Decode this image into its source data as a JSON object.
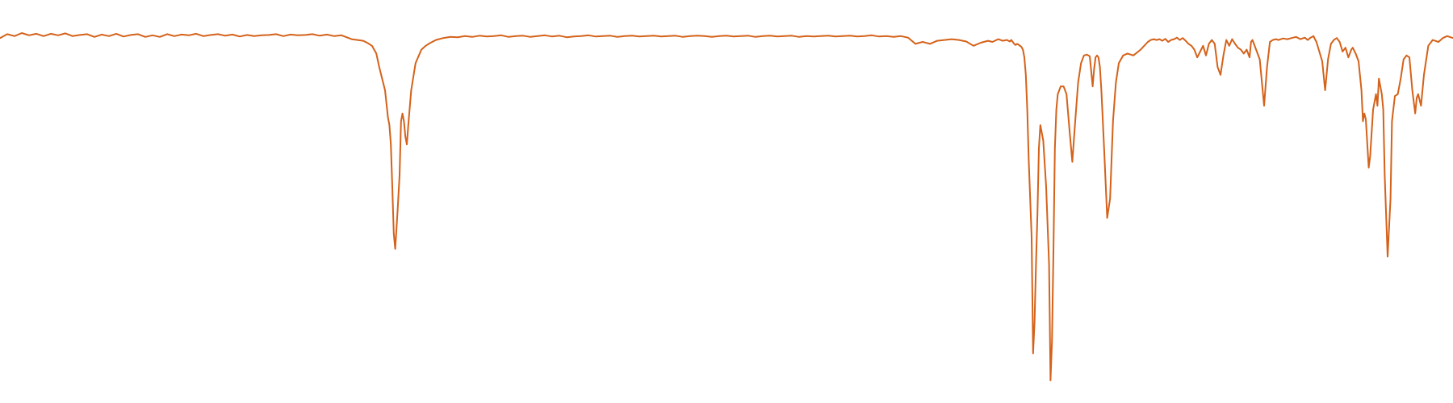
{
  "colors": {
    "background": "#ffffff",
    "line": "#d4621a"
  },
  "chart_data": {
    "type": "line",
    "title": "",
    "xlabel": "",
    "ylabel": "",
    "grid": false,
    "legend": "none",
    "xlim": [
      0,
      100
    ],
    "ylim": [
      0,
      100
    ],
    "series": [
      {
        "x": [
          0,
          0.5,
          1,
          1.5,
          2,
          2.5,
          3,
          3.5,
          4,
          4.5,
          5,
          5.5,
          6,
          6.5,
          7,
          7.5,
          8,
          8.5,
          9,
          9.5,
          10,
          10.5,
          11,
          11.5,
          12,
          12.5,
          13,
          13.5,
          14,
          14.5,
          15,
          15.5,
          16,
          16.5,
          17,
          17.5,
          18,
          18.5,
          19,
          19.5,
          20,
          20.5,
          21,
          21.5,
          22,
          22.5,
          23,
          23.5,
          24,
          24.2,
          24.6,
          25,
          25.3,
          25.6,
          25.9,
          26.1,
          26.3,
          26.5,
          26.6,
          26.7,
          26.8,
          26.9,
          27,
          27.1,
          27.2,
          27.35,
          27.5,
          27.6,
          27.7,
          27.8,
          27.9,
          28,
          28.1,
          28.3,
          28.6,
          29,
          29.3,
          29.6,
          30,
          30.5,
          31,
          31.5,
          32,
          32.5,
          33,
          33.5,
          34,
          34.5,
          35,
          35.5,
          36,
          36.5,
          37,
          37.5,
          38,
          38.5,
          39,
          39.5,
          40,
          40.5,
          41,
          41.5,
          42,
          42.5,
          43,
          43.5,
          44,
          44.5,
          45,
          45.5,
          46,
          46.5,
          47,
          47.5,
          48,
          48.5,
          49,
          49.5,
          50,
          50.5,
          51,
          51.5,
          52,
          52.5,
          53,
          53.5,
          54,
          54.5,
          55,
          55.5,
          56,
          56.5,
          57,
          57.5,
          58,
          58.5,
          59,
          59.5,
          60,
          60.5,
          61,
          61.5,
          62,
          62.5,
          63,
          63.5,
          64,
          64.5,
          65,
          65.5,
          66,
          66.5,
          67,
          67.5,
          68,
          68.3,
          68.7,
          69,
          69.3,
          69.5,
          69.6,
          69.7,
          69.8,
          69.9,
          70,
          70.1,
          70.2,
          70.3,
          70.4,
          70.5,
          70.6,
          70.7,
          70.8,
          70.9,
          71,
          71.1,
          71.2,
          71.3,
          71.4,
          71.5,
          71.6,
          71.8,
          72,
          72.2,
          72.3,
          72.4,
          72.5,
          72.6,
          72.7,
          72.8,
          73,
          73.2,
          73.4,
          73.6,
          73.8,
          74,
          74.2,
          74.4,
          74.6,
          74.8,
          75,
          75.1,
          75.2,
          75.3,
          75.4,
          75.5,
          75.6,
          75.7,
          75.8,
          76,
          76.2,
          76.4,
          76.6,
          76.8,
          77,
          77.3,
          77.6,
          78,
          78.5,
          79,
          79.2,
          79.4,
          79.6,
          79.8,
          80,
          80.2,
          80.4,
          80.6,
          80.8,
          81,
          81.2,
          81.4,
          81.6,
          81.8,
          82,
          82.2,
          82.4,
          82.6,
          82.8,
          83,
          83.2,
          83.4,
          83.6,
          83.8,
          84,
          84.2,
          84.4,
          84.6,
          84.8,
          85,
          85.2,
          85.4,
          85.6,
          85.8,
          86,
          86.1,
          86.2,
          86.3,
          86.5,
          86.7,
          86.9,
          87,
          87.2,
          87.4,
          87.6,
          87.8,
          88,
          88.3,
          88.6,
          88.9,
          89.2,
          89.5,
          89.8,
          90,
          90.2,
          90.4,
          90.5,
          90.6,
          90.8,
          91,
          91.2,
          91.4,
          91.6,
          91.8,
          92,
          92.2,
          92.4,
          92.6,
          92.8,
          93,
          93.1,
          93.3,
          93.5,
          93.7,
          93.8,
          93.9,
          94,
          94.2,
          94.3,
          94.5,
          94.7,
          94.8,
          94.9,
          95,
          95.1,
          95.2,
          95.3,
          95.5,
          95.7,
          95.8,
          96,
          96.2,
          96.4,
          96.6,
          96.8,
          97,
          97.2,
          97.4,
          97.5,
          97.6,
          97.8,
          98,
          98.3,
          98.6,
          99,
          99.3,
          99.6,
          100
        ],
        "y": [
          93.5,
          94.5,
          94.0,
          94.8,
          94.2,
          94.6,
          94.0,
          94.6,
          94.2,
          94.7,
          94.0,
          94.3,
          94.5,
          93.8,
          94.4,
          94.0,
          94.6,
          93.9,
          94.3,
          94.5,
          93.8,
          94.2,
          93.8,
          94.5,
          94.0,
          94.4,
          94.2,
          94.6,
          94.0,
          94.3,
          94.5,
          94.1,
          94.4,
          93.9,
          94.3,
          94.0,
          94.2,
          94.3,
          94.5,
          94.0,
          94.4,
          94.2,
          94.3,
          94.5,
          94.1,
          94.4,
          94.0,
          94.2,
          93.5,
          93.2,
          93.0,
          92.8,
          92.2,
          91.5,
          89.5,
          86.0,
          83.0,
          80.0,
          76.5,
          73.0,
          71.0,
          66.0,
          55.0,
          43.0,
          39.0,
          48.0,
          58.0,
          72.0,
          74.0,
          72.0,
          68.0,
          66.0,
          71.0,
          80.0,
          87.0,
          90.5,
          91.5,
          92.2,
          93.0,
          93.5,
          93.8,
          93.7,
          94.0,
          93.8,
          94.1,
          93.9,
          94.0,
          94.2,
          93.8,
          94.0,
          94.1,
          93.8,
          94.0,
          94.2,
          93.9,
          94.1,
          93.7,
          93.9,
          94.0,
          94.2,
          93.9,
          94.0,
          94.1,
          93.8,
          94.0,
          94.1,
          93.9,
          94.0,
          94.1,
          93.9,
          94.0,
          94.1,
          93.8,
          94.0,
          94.1,
          94.0,
          93.8,
          94.0,
          94.1,
          93.9,
          94.0,
          94.1,
          93.8,
          94.0,
          94.1,
          93.9,
          94.0,
          94.1,
          93.8,
          94.0,
          93.9,
          94.0,
          94.1,
          93.9,
          94.0,
          94.1,
          93.9,
          94.0,
          94.2,
          93.9,
          94.0,
          93.8,
          94.0,
          93.6,
          92.0,
          92.5,
          92.0,
          92.8,
          93.0,
          93.2,
          93.0,
          92.6,
          91.5,
          92.3,
          92.8,
          92.5,
          93.2,
          92.8,
          93.0,
          92.6,
          93.0,
          92.5,
          92.0,
          91.7,
          92.0,
          91.8,
          91.5,
          91.2,
          90.5,
          88.5,
          84.0,
          75.0,
          62.0,
          52.0,
          42.0,
          12.0,
          20.0,
          35.0,
          48.0,
          65.0,
          71.0,
          67.0,
          55.0,
          35.0,
          5.0,
          15.0,
          38.0,
          65.0,
          75.0,
          79.0,
          81.0,
          81.0,
          79.0,
          70.0,
          61.5,
          72.0,
          82.0,
          87.0,
          89.0,
          89.2,
          88.8,
          85.0,
          81.0,
          85.5,
          88.5,
          89.0,
          88.5,
          86.0,
          80.0,
          64.0,
          47.0,
          52.0,
          72.0,
          82.0,
          87.0,
          89.0,
          89.5,
          89.0,
          90.5,
          92.5,
          93.0,
          93.2,
          93.0,
          93.2,
          92.8,
          93.3,
          92.5,
          93.0,
          93.2,
          93.6,
          93.0,
          93.5,
          92.8,
          92.0,
          91.5,
          90.5,
          88.5,
          90.0,
          91.5,
          89.0,
          92.0,
          93.0,
          92.0,
          86.0,
          84.0,
          89.0,
          93.0,
          91.5,
          93.2,
          92.0,
          91.0,
          90.5,
          89.5,
          90.5,
          88.5,
          92.5,
          93.0,
          92.0,
          90.0,
          88.0,
          80.0,
          76.0,
          86.0,
          92.5,
          93.0,
          93.2,
          93.0,
          93.4,
          93.2,
          93.5,
          93.8,
          93.2,
          93.6,
          93.0,
          93.6,
          94.0,
          93.2,
          92.5,
          90.0,
          87.5,
          80.0,
          88.0,
          92.0,
          93.0,
          93.5,
          92.5,
          90.0,
          91.0,
          88.5,
          90.5,
          91.0,
          89.5,
          87.5,
          80.0,
          72.0,
          74.0,
          72.5,
          60.0,
          63.0,
          75.0,
          79.0,
          76.0,
          83.0,
          81.0,
          79.0,
          75.0,
          58.0,
          37.0,
          52.0,
          72.0,
          78.5,
          79.0,
          83.0,
          88.0,
          89.0,
          88.5,
          80.0,
          74.0,
          78.0,
          79.0,
          76.0,
          84.0,
          91.5,
          93.0,
          92.5,
          93.5,
          94.0,
          93.5
        ]
      }
    ]
  }
}
